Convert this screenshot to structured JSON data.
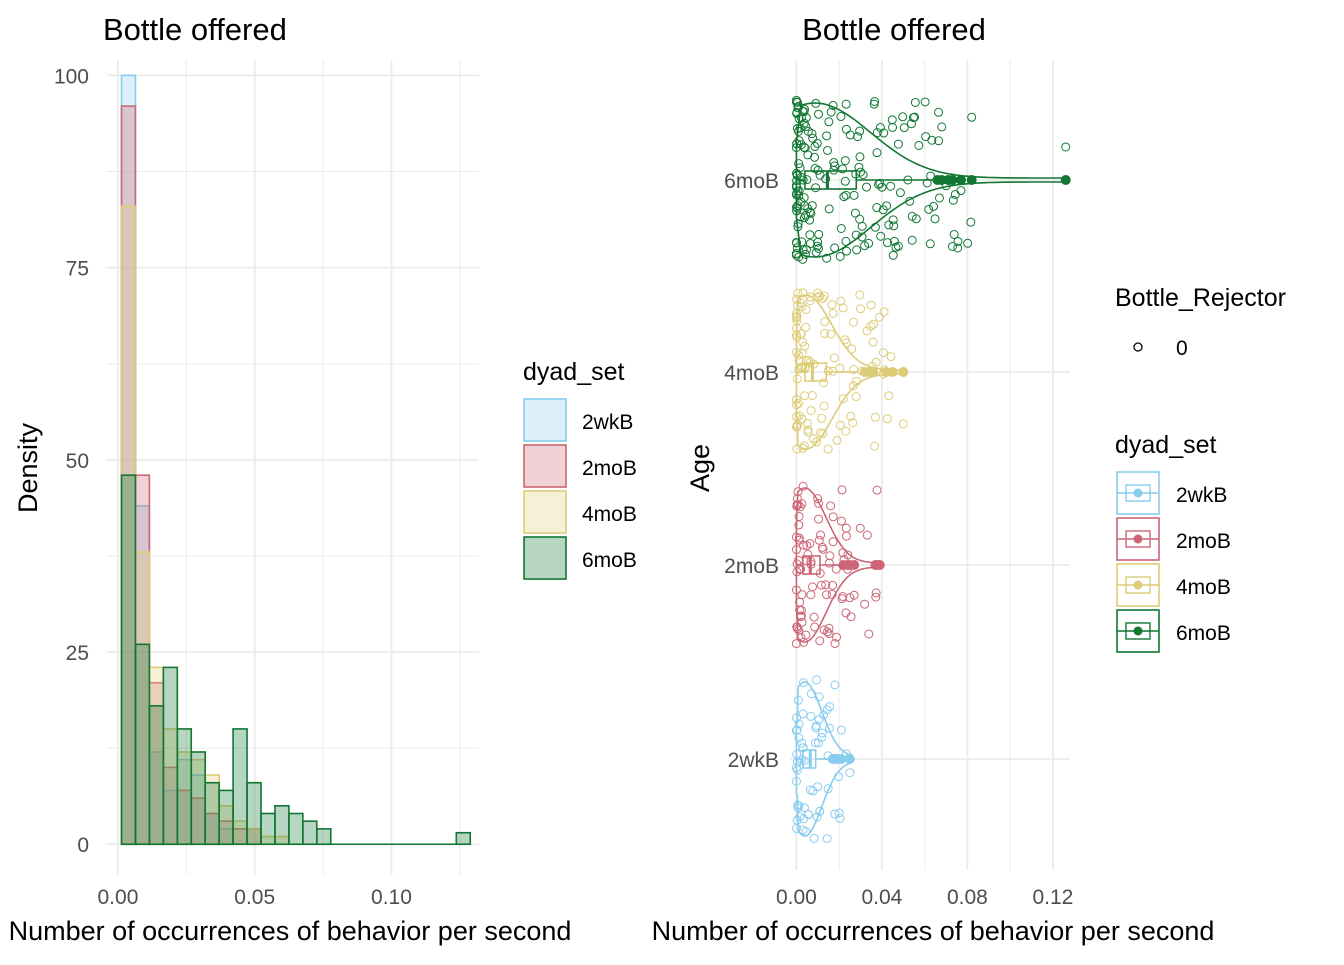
{
  "colors": {
    "2wkB": "#88CCEE",
    "2moB": "#CC6677",
    "4moB": "#DDCC77",
    "6moB": "#117733",
    "grid": "#EBEBEB"
  },
  "chart_data": [
    {
      "type": "histogram",
      "title": "Bottle offered",
      "xlabel": "Number of occurrences of behavior per second",
      "ylabel": "Density",
      "xlim": [
        -0.004,
        0.132
      ],
      "ylim": [
        -4,
        102
      ],
      "x_ticks": [
        0.0,
        0.05,
        0.1
      ],
      "x_tick_labels": [
        "0.00",
        "0.05",
        "0.10"
      ],
      "y_ticks": [
        0,
        25,
        50,
        75,
        100
      ],
      "y_tick_labels": [
        "0",
        "25",
        "50",
        "75",
        "100"
      ],
      "grid": true,
      "legend": {
        "title": "dyad_set",
        "position": "right",
        "entries": [
          "2wkB",
          "2moB",
          "4moB",
          "6moB"
        ]
      },
      "bin_width": 0.0051,
      "bin_start": 0.0013,
      "series": [
        {
          "name": "2wkB",
          "values": [
            100,
            44,
            12,
            7,
            11,
            9,
            4,
            2,
            0,
            0,
            0,
            0,
            0,
            0,
            0,
            0,
            0,
            0,
            0,
            0,
            0,
            0,
            0,
            0,
            0
          ]
        },
        {
          "name": "2moB",
          "values": [
            96,
            48,
            21,
            10,
            7,
            6,
            4,
            3,
            2,
            2,
            0,
            0,
            0,
            0,
            0,
            0,
            0,
            0,
            0,
            0,
            0,
            0,
            0,
            0,
            0
          ]
        },
        {
          "name": "4moB",
          "values": [
            83,
            38,
            23,
            15,
            12,
            11,
            9,
            5,
            3,
            2,
            1,
            1,
            0,
            0,
            0,
            0,
            0,
            0,
            0,
            0,
            0,
            0,
            0,
            0,
            0
          ]
        },
        {
          "name": "6moB",
          "values": [
            48,
            26,
            18,
            23,
            15,
            12,
            8,
            7,
            15,
            8,
            4,
            5,
            4,
            3,
            2,
            0,
            0,
            0,
            0,
            0,
            0,
            0,
            0,
            0,
            1.5
          ]
        }
      ]
    },
    {
      "type": "scatter",
      "subtype": "raincloud (violin + boxplot + jittered points)",
      "title": "Bottle offered",
      "xlabel": "Number of occurrences of behavior per second",
      "ylabel": "Age",
      "xlim": [
        -0.003,
        0.128
      ],
      "x_ticks": [
        0.0,
        0.04,
        0.08,
        0.12
      ],
      "x_tick_labels": [
        "0.00",
        "0.04",
        "0.08",
        "0.12"
      ],
      "categories": [
        "2wkB",
        "2moB",
        "4moB",
        "6moB"
      ],
      "grid": true,
      "legend_shape": {
        "title": "Bottle_Rejector",
        "entries": [
          "0"
        ]
      },
      "legend_color": {
        "title": "dyad_set",
        "entries": [
          "2wkB",
          "2moB",
          "4moB",
          "6moB"
        ]
      },
      "boxplots": [
        {
          "name": "2wkB",
          "q1": 0.003,
          "median": 0.0065,
          "q3": 0.009,
          "whisker_low": 0.0,
          "whisker_high": 0.015,
          "outliers": [
            0.017,
            0.018,
            0.019,
            0.021,
            0.025
          ]
        },
        {
          "name": "2moB",
          "q1": 0.003,
          "median": 0.0065,
          "q3": 0.011,
          "whisker_low": 0.0,
          "whisker_high": 0.02,
          "outliers": [
            0.022,
            0.024,
            0.025,
            0.027,
            0.037,
            0.038,
            0.039
          ]
        },
        {
          "name": "4moB",
          "q1": 0.004,
          "median": 0.0075,
          "q3": 0.014,
          "whisker_low": 0.0,
          "whisker_high": 0.029,
          "outliers": [
            0.032,
            0.034,
            0.036,
            0.042,
            0.045,
            0.05
          ]
        },
        {
          "name": "6moB",
          "q1": 0.004,
          "median": 0.0145,
          "q3": 0.028,
          "whisker_low": 0.0,
          "whisker_high": 0.064,
          "outliers": [
            0.066,
            0.068,
            0.071,
            0.073,
            0.077,
            0.082,
            0.126
          ]
        }
      ],
      "jitter_points": {
        "2wkB": {
          "n": 60,
          "max": 0.025,
          "extras": [
            0.025,
            0.02,
            0.021,
            0.018
          ]
        },
        "2moB": {
          "n": 90,
          "max": 0.04,
          "extras": [
            0.024,
            0.022,
            0.027,
            0.025
          ]
        },
        "4moB": {
          "n": 110,
          "max": 0.045,
          "extras": [
            0.05,
            0.033,
            0.036
          ]
        },
        "6moB": {
          "n": 190,
          "max": 0.082,
          "extras": [
            0.082,
            0.077,
            0.126,
            0.073,
            0.068
          ]
        }
      }
    }
  ]
}
